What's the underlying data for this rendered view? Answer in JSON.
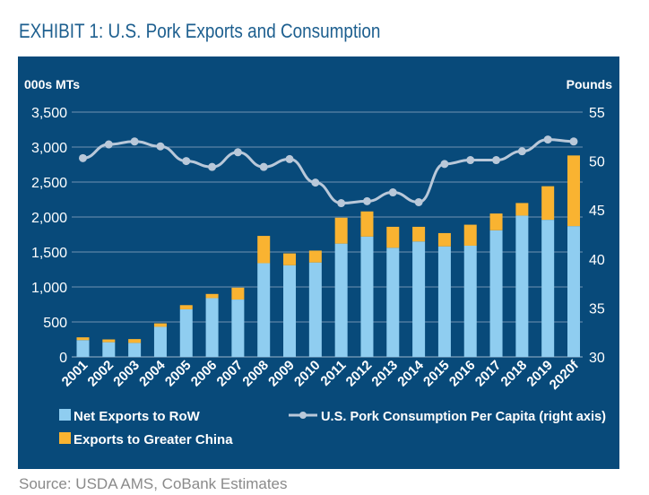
{
  "title": "EXHIBIT 1: U.S. Pork Exports and Consumption",
  "source": "Source: USDA AMS, CoBank Estimates",
  "chart_data": {
    "type": "bar",
    "stacked": true,
    "categories": [
      "2001",
      "2002",
      "2003",
      "2004",
      "2005",
      "2006",
      "2007",
      "2008",
      "2009",
      "2010",
      "2011",
      "2012",
      "2013",
      "2014",
      "2015",
      "2016",
      "2017",
      "2018",
      "2019",
      "2020f"
    ],
    "ylabel": "000s MTs",
    "y2label": "Pounds",
    "ylim": [
      0,
      3500
    ],
    "y2lim": [
      30,
      55
    ],
    "yticks": [
      "0",
      "500",
      "1,000",
      "1,500",
      "2,000",
      "2,500",
      "3,000",
      "3,500"
    ],
    "y2ticks": [
      "30",
      "35",
      "40",
      "45",
      "50",
      "55"
    ],
    "grid": true,
    "legend_position": "bottom",
    "series": [
      {
        "name": "Net Exports to RoW",
        "type": "bar",
        "color": "#8fcdf0",
        "values": [
          240,
          210,
          200,
          430,
          680,
          840,
          820,
          1340,
          1310,
          1350,
          1620,
          1720,
          1560,
          1650,
          1580,
          1590,
          1810,
          2020,
          1960,
          1870
        ]
      },
      {
        "name": "Exports to Greater China",
        "type": "bar",
        "color": "#f9b331",
        "values": [
          40,
          40,
          55,
          50,
          60,
          60,
          170,
          390,
          170,
          170,
          370,
          360,
          300,
          210,
          190,
          300,
          240,
          180,
          480,
          1010
        ]
      },
      {
        "name": "U.S. Pork Consumption Per Capita (right axis)",
        "type": "line",
        "axis": "right",
        "color": "#b9c8d9",
        "values": [
          50.3,
          51.7,
          52.0,
          51.5,
          50.0,
          49.4,
          50.9,
          49.4,
          50.2,
          47.8,
          45.7,
          45.9,
          46.8,
          45.8,
          49.7,
          50.1,
          50.1,
          51.0,
          52.2,
          52.0
        ]
      }
    ]
  }
}
